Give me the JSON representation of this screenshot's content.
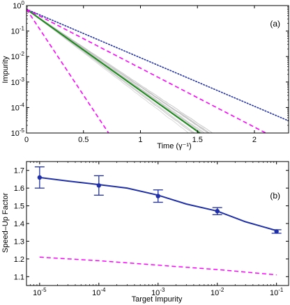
{
  "chart_data": [
    {
      "panel": "(a)",
      "type": "line",
      "xlabel": "Time (γ⁻¹)",
      "ylabel": "Impurity",
      "xlim": [
        0,
        2.3
      ],
      "ylim": [
        1e-05,
        1
      ],
      "yscale": "log",
      "x_ticks": [
        "0",
        "0.5",
        "1",
        "1.5",
        "2"
      ],
      "x_tick_values": [
        0,
        0.5,
        1,
        1.5,
        2
      ],
      "y_ticks": [
        {
          "base": "10",
          "exp": "0"
        },
        {
          "base": "10",
          "exp": "-1"
        },
        {
          "base": "10",
          "exp": "-2"
        },
        {
          "base": "10",
          "exp": "-3"
        },
        {
          "base": "10",
          "exp": "-4"
        },
        {
          "base": "10",
          "exp": "-5"
        }
      ],
      "y_tick_values": [
        1,
        0.1,
        0.01,
        0.001,
        0.0001,
        1e-05
      ],
      "series": [
        {
          "style": "solid",
          "color": "#1a8a1a",
          "x": [
            0,
            1.52
          ],
          "y": [
            0.72,
            1e-05
          ]
        },
        {
          "style": "dotted",
          "color": "#1f2fa8",
          "x": [
            0,
            2.3
          ],
          "y": [
            0.72,
            3e-05
          ]
        },
        {
          "style": "dashed",
          "color": "#ff00ff",
          "x": [
            0,
            0.72
          ],
          "y": [
            0.72,
            1e-05
          ]
        },
        {
          "style": "dashed",
          "color": "#ff00ff",
          "x": [
            0,
            2.1
          ],
          "y": [
            0.72,
            1e-05
          ]
        }
      ],
      "trajectory_band": {
        "color": "#bdbdbd",
        "description_free": true
      },
      "grid": false
    },
    {
      "panel": "(b)",
      "type": "line",
      "xlabel": "Target Impurity",
      "ylabel": "Speed–Up Factor",
      "xscale": "log",
      "xlim": [
        6e-06,
        0.16
      ],
      "ylim": [
        1.05,
        1.75
      ],
      "x_ticks": [
        {
          "base": "10",
          "exp": "-5"
        },
        {
          "base": "10",
          "exp": "-4"
        },
        {
          "base": "10",
          "exp": "-3"
        },
        {
          "base": "10",
          "exp": "-2"
        },
        {
          "base": "10",
          "exp": "-1"
        }
      ],
      "x_tick_values": [
        1e-05,
        0.0001,
        0.001,
        0.01,
        0.1
      ],
      "y_ticks": [
        "1.1",
        "1.2",
        "1.3",
        "1.4",
        "1.5",
        "1.6",
        "1.7"
      ],
      "y_tick_values": [
        1.1,
        1.2,
        1.3,
        1.4,
        1.5,
        1.6,
        1.7
      ],
      "series": [
        {
          "style": "solid",
          "color": "#1f2fa8",
          "x": [
            1e-05,
            3e-05,
            0.0001,
            0.0003,
            0.001,
            0.003,
            0.01,
            0.03,
            0.1
          ],
          "y": [
            1.66,
            1.64,
            1.62,
            1.6,
            1.56,
            1.51,
            1.47,
            1.41,
            1.36
          ]
        },
        {
          "style": "points",
          "color": "#1f2fa8",
          "x": [
            1e-05,
            0.0001,
            0.001,
            0.01,
            0.1
          ],
          "y": [
            1.66,
            1.615,
            1.555,
            1.47,
            1.355
          ],
          "err": [
            0.06,
            0.055,
            0.035,
            0.02,
            0.01
          ]
        },
        {
          "style": "dashed",
          "color": "#ff00ff",
          "x": [
            1e-05,
            0.0001,
            0.001,
            0.01,
            0.1
          ],
          "y": [
            1.21,
            1.19,
            1.165,
            1.14,
            1.11
          ]
        }
      ],
      "grid": false
    }
  ]
}
